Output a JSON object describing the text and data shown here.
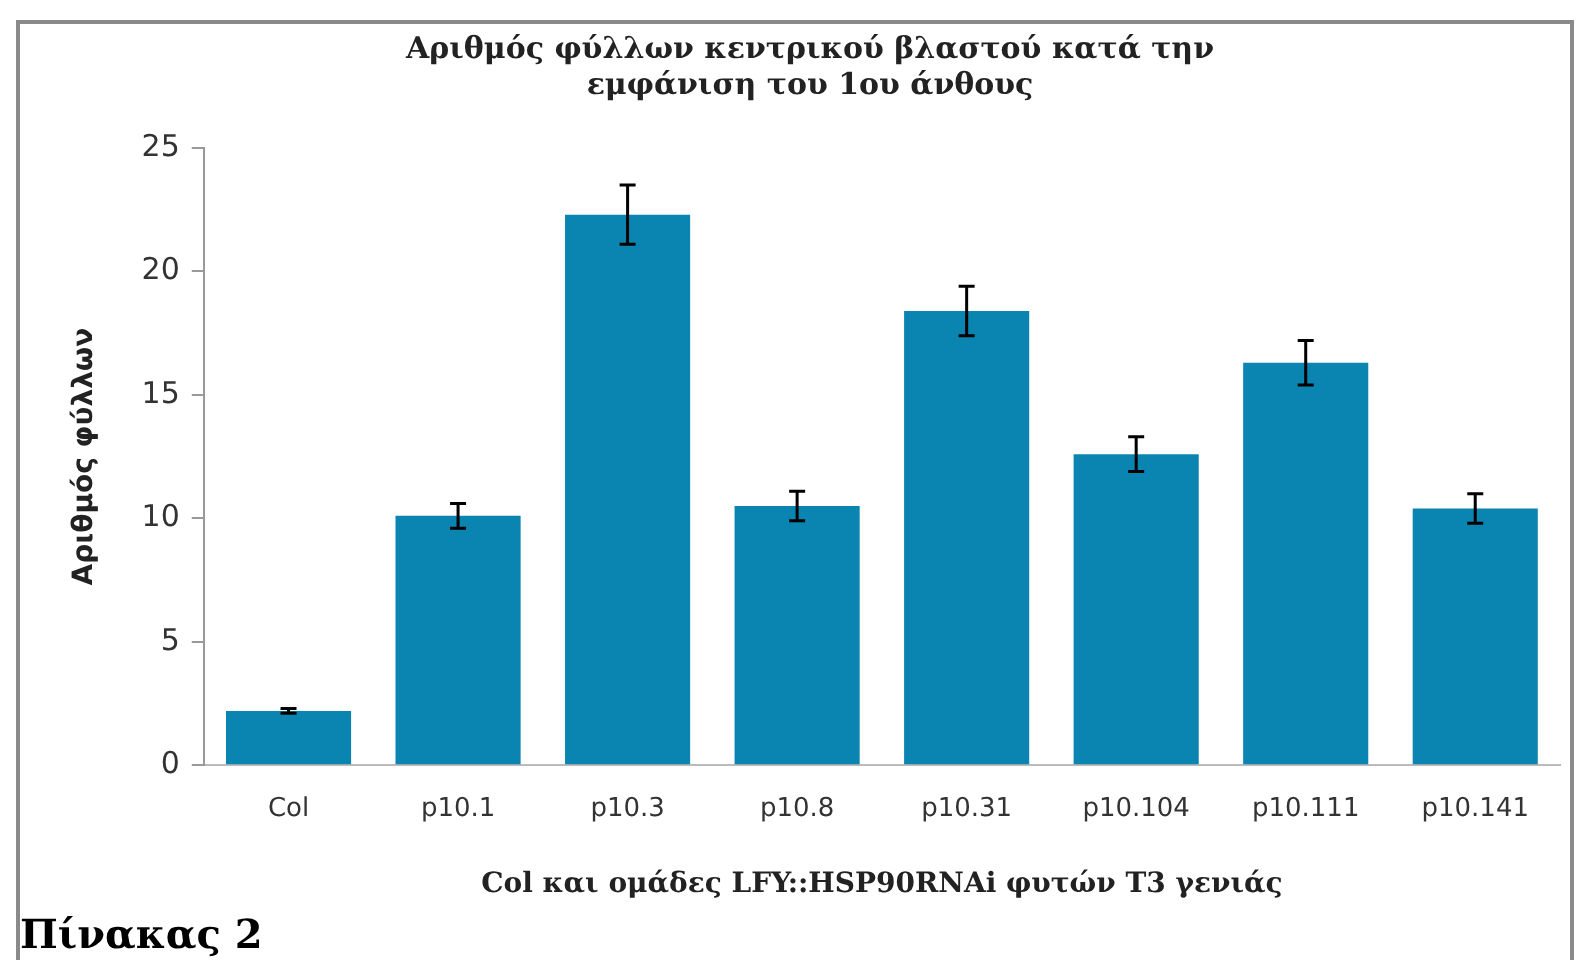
{
  "chart_data": {
    "type": "bar",
    "title": "Αριθμός φύλλων κεντρικού βλαστού κατά την εμφάνιση του 1ου άνθους",
    "xlabel": "Col και ομάδες LFY::HSP90RNAi φυτών T3 γενιάς",
    "ylabel": "Αριθμός φύλλων",
    "categories": [
      "Col",
      "p10.1",
      "p10.3",
      "p10.8",
      "p10.31",
      "p10.104",
      "p10.111",
      "p10.141"
    ],
    "values": [
      2.2,
      10.1,
      22.3,
      10.5,
      18.4,
      12.6,
      16.3,
      10.4
    ],
    "errors": [
      0.1,
      0.5,
      1.2,
      0.6,
      1.0,
      0.7,
      0.9,
      0.6
    ],
    "color": "#0a84b0",
    "ylim": [
      0,
      25
    ],
    "yticks": [
      0,
      5,
      10,
      15,
      20,
      25
    ],
    "grid": false,
    "legend": false,
    "annotations": [
      "Πίνακας 2"
    ]
  }
}
